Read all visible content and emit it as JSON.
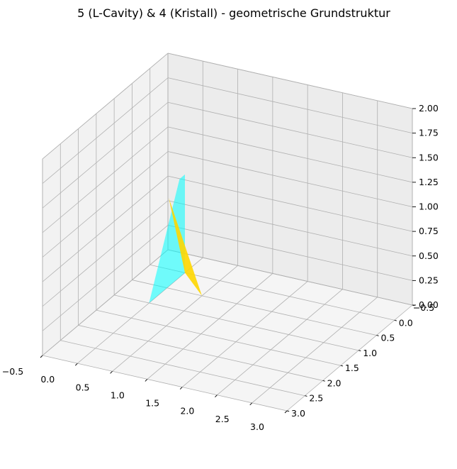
{
  "chart_data": {
    "type": "3d-surface",
    "title": "5 (L-Cavity) & 4 (Kristall) - geometrische Grundstruktur",
    "xlabel": "",
    "ylabel": "",
    "zlabel": "",
    "xlim": [
      -0.5,
      3.0
    ],
    "ylim": [
      -0.5,
      3.0
    ],
    "zlim": [
      0.0,
      2.0
    ],
    "x_ticks": [
      "−0.5",
      "0.0",
      "0.5",
      "1.0",
      "1.5",
      "2.0",
      "2.5",
      "3.0"
    ],
    "y_ticks": [
      "−0.5",
      "0.0",
      "0.5",
      "1.0",
      "1.5",
      "2.0",
      "2.5",
      "3.0"
    ],
    "z_ticks": [
      "0.00",
      "0.25",
      "0.50",
      "0.75",
      "1.00",
      "1.25",
      "1.50",
      "1.75",
      "2.00"
    ],
    "grid": true,
    "series": [
      {
        "color": "#00ffff",
        "opacity": 0.55,
        "polygons": [
          [
            [
              0.0,
              0.0,
              0.0
            ],
            [
              0.0,
              0.0,
              1.0
            ],
            [
              0.15,
              0.0,
              1.0
            ],
            [
              1.0,
              0.0,
              0.0
            ]
          ]
        ]
      },
      {
        "color": "#ffd700",
        "opacity": 0.9,
        "polygons": [
          [
            [
              0.0,
              0.0,
              0.0
            ],
            [
              0.5,
              0.5,
              0.0
            ],
            [
              0.45,
              0.0,
              0.9
            ]
          ]
        ]
      }
    ]
  }
}
